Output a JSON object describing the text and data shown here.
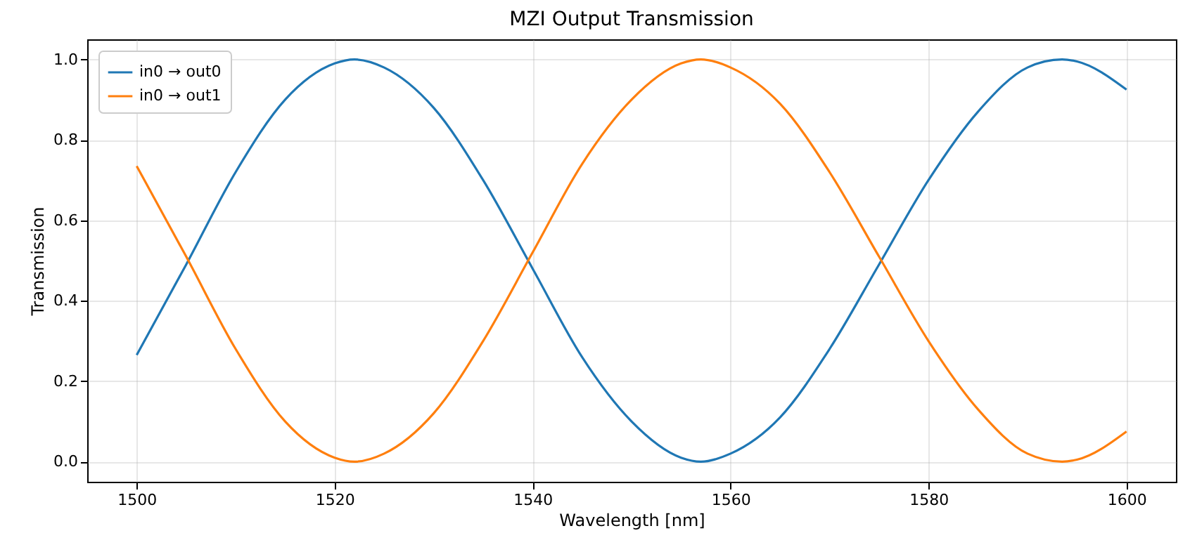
{
  "chart_data": {
    "type": "line",
    "title": "MZI Output Transmission",
    "xlabel": "Wavelength [nm]",
    "ylabel": "Transmission",
    "x": [
      1500,
      1505,
      1510,
      1515,
      1520,
      1522,
      1525,
      1530,
      1535,
      1540,
      1545,
      1550,
      1555,
      1557,
      1560,
      1565,
      1570,
      1575,
      1580,
      1585,
      1590,
      1593.5,
      1595,
      1600
    ],
    "series": [
      {
        "name": "in0 → out0",
        "color": "#1f77b4",
        "values": [
          0.265,
          0.49,
          0.72,
          0.9,
          0.99,
          1.0,
          0.98,
          0.88,
          0.7,
          0.48,
          0.26,
          0.1,
          0.01,
          0.0,
          0.02,
          0.11,
          0.28,
          0.49,
          0.7,
          0.87,
          0.98,
          1.0,
          0.995,
          0.925
        ]
      },
      {
        "name": "in0 → out1",
        "color": "#ff7f0e",
        "values": [
          0.735,
          0.51,
          0.28,
          0.1,
          0.01,
          0.0,
          0.02,
          0.12,
          0.3,
          0.52,
          0.74,
          0.9,
          0.99,
          1.0,
          0.98,
          0.89,
          0.72,
          0.51,
          0.3,
          0.13,
          0.02,
          0.0,
          0.005,
          0.075
        ]
      }
    ],
    "xlim": [
      1495,
      1605
    ],
    "xticks": [
      1500,
      1520,
      1540,
      1560,
      1580,
      1600
    ],
    "ylim": [
      -0.05,
      1.05
    ],
    "yticks": [
      {
        "value": 0,
        "label": "0.0"
      },
      {
        "value": 0.2,
        "label": "0.2"
      },
      {
        "value": 0.4,
        "label": "0.4"
      },
      {
        "value": 0.6,
        "label": "0.6"
      },
      {
        "value": 0.8,
        "label": "0.8"
      },
      {
        "value": 1,
        "label": "1.0"
      }
    ],
    "grid": true,
    "legend": "top left",
    "line_style": "solid",
    "marker": "none"
  }
}
